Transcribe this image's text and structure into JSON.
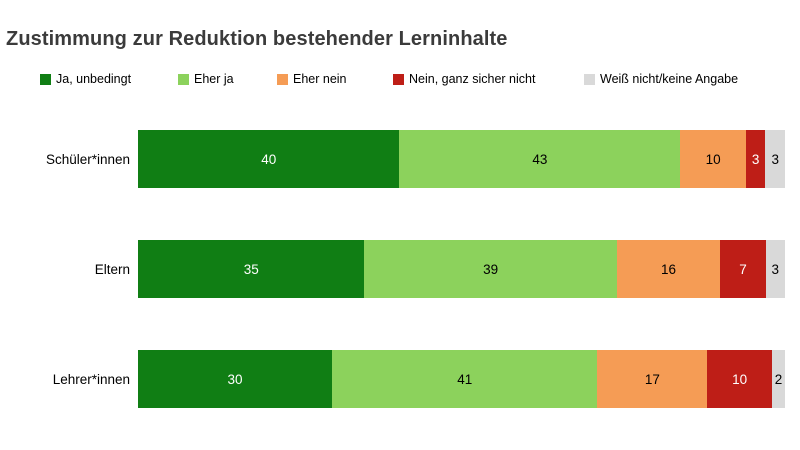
{
  "title": "Zustimmung zur Reduktion bestehender Lerninhalte",
  "colors": {
    "background": "#ffffff",
    "title_text": "#3b3b3b",
    "label_text": "#000000"
  },
  "chart_data": {
    "type": "bar",
    "orientation": "horizontal",
    "stacked": true,
    "unit": "percent",
    "title": "Zustimmung zur Reduktion bestehender Lerninhalte",
    "legend_position": "top",
    "grid": false,
    "categories": [
      "Schüler*innen",
      "Eltern",
      "Lehrer*innen"
    ],
    "series": [
      {
        "name": "Ja, unbedingt",
        "color": "#107e14",
        "text_color": "#ffffff",
        "values": [
          40,
          35,
          30
        ]
      },
      {
        "name": "Eher ja",
        "color": "#8cd25c",
        "text_color": "#000000",
        "values": [
          43,
          39,
          41
        ]
      },
      {
        "name": "Eher nein",
        "color": "#f59c55",
        "text_color": "#000000",
        "values": [
          10,
          16,
          17
        ]
      },
      {
        "name": "Nein, ganz sicher nicht",
        "color": "#be1e17",
        "text_color": "#ffffff",
        "values": [
          3,
          7,
          10
        ]
      },
      {
        "name": "Weiß nicht/keine Angabe",
        "color": "#d9d9d9",
        "text_color": "#000000",
        "values": [
          3,
          3,
          2
        ]
      }
    ]
  }
}
